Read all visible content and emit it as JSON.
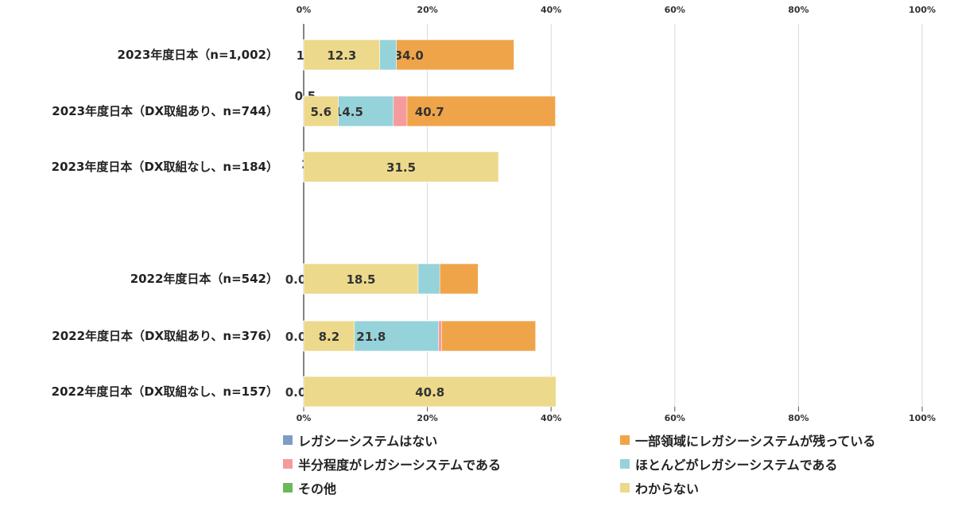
{
  "chart_data": {
    "type": "bar",
    "orientation": "horizontal",
    "stacked": "percent",
    "title": "",
    "xlim": [
      0,
      100
    ],
    "x_ticks": [
      "0%",
      "20%",
      "40%",
      "60%",
      "80%",
      "100%"
    ],
    "x_tick_values": [
      0,
      20,
      40,
      60,
      80,
      100
    ],
    "grid": true,
    "legend_position": "bottom",
    "categories": [
      "2023年度日本（n=1,002）",
      "2023年度日本（DX取組あり、n=744）",
      "2023年度日本（DX取組なし、n=184）",
      "",
      "2022年度日本（n=542）",
      "2022年度日本（DX取組あり、n=376）",
      "2022年度日本（DX取組なし、n=157）"
    ],
    "series": [
      {
        "name": "レガシーシステムはない",
        "color": "#7e9cc4",
        "values": [
          24.0,
          21.9,
          29.3,
          null,
          12.2,
          10.1,
          15.3
        ]
      },
      {
        "name": "一部領域にレガシーシステムが残っている",
        "color": "#f0a449",
        "values": [
          34.0,
          40.7,
          12.5,
          null,
          28.2,
          37.5,
          7.6
        ]
      },
      {
        "name": "半分程度がレガシーシステムである",
        "color": "#f69b9b",
        "values": [
          13.8,
          16.7,
          5.4,
          null,
          19.2,
          22.3,
          12.7
        ]
      },
      {
        "name": "ほとんどがレガシーシステムである",
        "color": "#96d2da",
        "values": [
          15.0,
          14.5,
          18.5,
          null,
          22.0,
          21.8,
          23.6
        ]
      },
      {
        "name": "その他",
        "color": "#6bb85a",
        "values": [
          1.0,
          0.5,
          2.7,
          null,
          0.0,
          0.0,
          0.0
        ]
      },
      {
        "name": "わからない",
        "color": "#ecd98c",
        "values": [
          12.3,
          5.6,
          31.5,
          null,
          18.5,
          8.2,
          40.8
        ]
      }
    ],
    "data_labels": [
      [
        "24.0",
        "34.0",
        "13.8",
        "15.0",
        "1.0",
        "12.3"
      ],
      [
        "21.9",
        "40.7",
        "16.7",
        "14.5",
        "0.5",
        "5.6"
      ],
      [
        "29.3",
        "12.5",
        "5.4",
        "18.5",
        "2.7",
        "31.5"
      ],
      null,
      [
        "12.2",
        "28.2",
        "19.2",
        "22.0",
        "0.0",
        "18.5"
      ],
      [
        "10.1",
        "37.5",
        "22.3",
        "21.8",
        "0.0",
        "8.2"
      ],
      [
        "15.3",
        "7.6",
        "12.7",
        "23.6",
        "0.0",
        "40.8"
      ]
    ]
  }
}
